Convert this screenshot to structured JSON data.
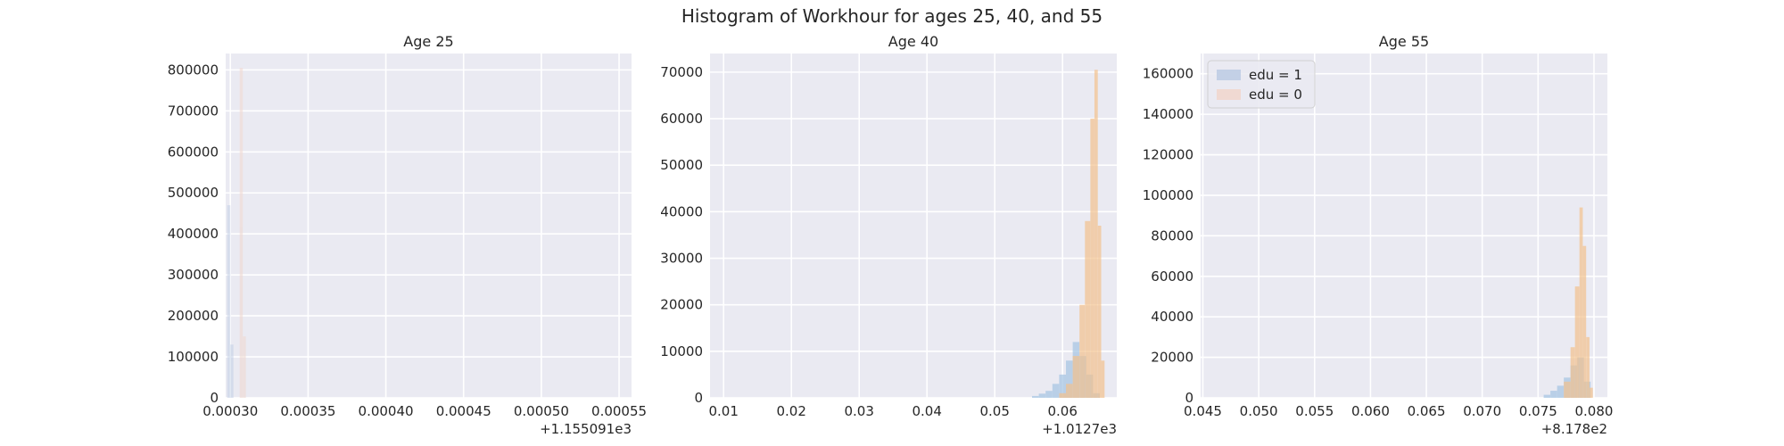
{
  "suptitle": "Histogram of Workhour for ages 25, 40, and 55",
  "colors": {
    "background": "#eaeaf2",
    "grid": "#ffffff",
    "edu1_light": "#c3d0e6",
    "edu1_dense": "#a9c7e4",
    "edu0_light": "#f0d9d2",
    "edu0_dense": "#f3c28e"
  },
  "legend": {
    "placement": "top-left",
    "entries": [
      "edu = 1",
      "edu = 0"
    ]
  },
  "chart_data": [
    {
      "type": "bar",
      "title": "Age 25",
      "xlabel": "",
      "ylabel": "",
      "xlim": [
        0.000297,
        0.000558
      ],
      "ylim": [
        0,
        840000
      ],
      "x_offset_label": "+1.155091e3",
      "xticks": [
        0.0003,
        0.00035,
        0.0004,
        0.00045,
        0.0005,
        0.00055
      ],
      "xtick_labels": [
        "0.00030",
        "0.00035",
        "0.00040",
        "0.00045",
        "0.00050",
        "0.00055"
      ],
      "yticks": [
        0,
        100000,
        200000,
        300000,
        400000,
        500000,
        600000,
        700000,
        800000
      ],
      "ytick_labels": [
        "0",
        "100000",
        "200000",
        "300000",
        "400000",
        "500000",
        "600000",
        "700000",
        "800000"
      ],
      "grid": true,
      "series": [
        {
          "name": "edu = 1",
          "color": "#c3d0e6",
          "opacity": 0.55,
          "bins": [
            [
              0.000298,
              0.0003,
              470000
            ],
            [
              0.0003,
              0.000302,
              130000
            ]
          ]
        },
        {
          "name": "edu = 0",
          "color": "#f0d9d2",
          "opacity": 0.6,
          "bins": [
            [
              0.000306,
              0.000308,
              805000
            ],
            [
              0.000308,
              0.00031,
              150000
            ]
          ]
        }
      ]
    },
    {
      "type": "bar",
      "title": "Age 40",
      "xlabel": "",
      "ylabel": "",
      "xlim": [
        0.008,
        0.068
      ],
      "ylim": [
        0,
        74000
      ],
      "x_offset_label": "+1.0127e3",
      "xticks": [
        0.01,
        0.02,
        0.03,
        0.04,
        0.05,
        0.06
      ],
      "xtick_labels": [
        "0.01",
        "0.02",
        "0.03",
        "0.04",
        "0.05",
        "0.06"
      ],
      "yticks": [
        0,
        10000,
        20000,
        30000,
        40000,
        50000,
        60000,
        70000
      ],
      "ytick_labels": [
        "0",
        "10000",
        "20000",
        "30000",
        "40000",
        "50000",
        "60000",
        "70000"
      ],
      "grid": true,
      "series": [
        {
          "name": "edu = 1",
          "color": "#a9c7e4",
          "opacity": 0.75,
          "bins": [
            [
              0.0555,
              0.0565,
              400
            ],
            [
              0.0565,
              0.0575,
              900
            ],
            [
              0.0575,
              0.0585,
              1500
            ],
            [
              0.0585,
              0.0595,
              3000
            ],
            [
              0.0595,
              0.0605,
              5000
            ],
            [
              0.0605,
              0.0615,
              8000
            ],
            [
              0.0615,
              0.0625,
              12000
            ],
            [
              0.0625,
              0.0635,
              9000
            ],
            [
              0.0635,
              0.0645,
              5000
            ],
            [
              0.0645,
              0.0655,
              1000
            ]
          ]
        },
        {
          "name": "edu = 0",
          "color": "#f3c28e",
          "opacity": 0.7,
          "bins": [
            [
              0.0595,
              0.0605,
              1000
            ],
            [
              0.0605,
              0.0615,
              3000
            ],
            [
              0.0615,
              0.0625,
              9000
            ],
            [
              0.0625,
              0.0633,
              20000
            ],
            [
              0.0633,
              0.0641,
              38000
            ],
            [
              0.0641,
              0.0647,
              60000
            ],
            [
              0.0647,
              0.0652,
              70500
            ],
            [
              0.0652,
              0.0657,
              37000
            ],
            [
              0.0657,
              0.0662,
              8000
            ]
          ]
        }
      ]
    },
    {
      "type": "bar",
      "title": "Age 55",
      "xlabel": "",
      "ylabel": "",
      "xlim": [
        0.0448,
        0.0812
      ],
      "ylim": [
        0,
        170000
      ],
      "x_offset_label": "+8.178e2",
      "xticks": [
        0.045,
        0.05,
        0.055,
        0.06,
        0.065,
        0.07,
        0.075,
        0.08
      ],
      "xtick_labels": [
        "0.045",
        "0.050",
        "0.055",
        "0.060",
        "0.065",
        "0.070",
        "0.075",
        "0.080"
      ],
      "yticks": [
        0,
        20000,
        40000,
        60000,
        80000,
        100000,
        120000,
        140000,
        160000
      ],
      "ytick_labels": [
        "0",
        "20000",
        "40000",
        "60000",
        "80000",
        "100000",
        "120000",
        "140000",
        "160000"
      ],
      "grid": true,
      "series": [
        {
          "name": "edu = 1",
          "color": "#a9c7e4",
          "opacity": 0.75,
          "bins": [
            [
              0.0755,
              0.0761,
              1500
            ],
            [
              0.0761,
              0.0767,
              3500
            ],
            [
              0.0767,
              0.0773,
              6000
            ],
            [
              0.0773,
              0.0779,
              10000
            ],
            [
              0.0779,
              0.0785,
              16000
            ],
            [
              0.0785,
              0.0791,
              20000
            ],
            [
              0.0791,
              0.0797,
              8000
            ]
          ]
        },
        {
          "name": "edu = 0",
          "color": "#f3c28e",
          "opacity": 0.7,
          "bins": [
            [
              0.0773,
              0.0779,
              8000
            ],
            [
              0.0779,
              0.0783,
              25000
            ],
            [
              0.0783,
              0.0787,
              55000
            ],
            [
              0.0787,
              0.079,
              94000
            ],
            [
              0.079,
              0.0793,
              75000
            ],
            [
              0.0793,
              0.0796,
              30000
            ],
            [
              0.0796,
              0.0799,
              5000
            ]
          ]
        }
      ]
    }
  ]
}
